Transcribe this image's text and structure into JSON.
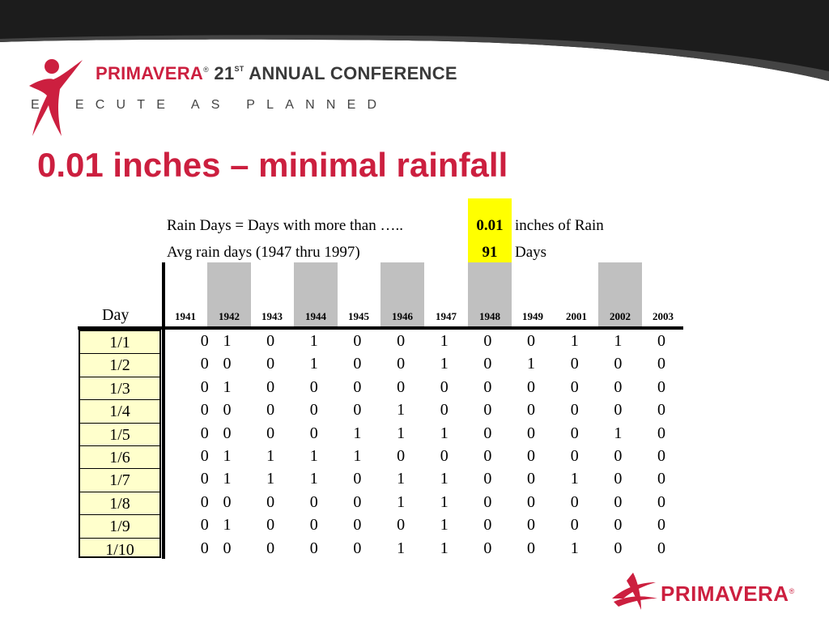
{
  "header": {
    "brand": "PRIMAVERA",
    "conference_prefix": " 21",
    "conference_sup": "ST",
    "conference_suffix": " ANNUAL CONFERENCE",
    "tagline": "ECUTE AS PLANNED",
    "tagline_initial": "E"
  },
  "title": "0.01 inches – minimal rainfall",
  "info": {
    "line1_left": "Rain Days  =  Days with more than …..",
    "line1_value": "0.01",
    "line1_right": "inches of Rain",
    "line2_left": "Avg rain days (1947 thru 1997)",
    "line2_value": "91",
    "line2_right": "Days"
  },
  "table": {
    "day_header": "Day",
    "years": [
      "1941",
      "1942",
      "1943",
      "1944",
      "1945",
      "1946",
      "1947",
      "1948",
      "1949",
      "2001",
      "2002",
      "2003"
    ],
    "rows": [
      {
        "day": "1/1",
        "values": [
          "0",
          "1",
          "0",
          "1",
          "0",
          "0",
          "1",
          "0",
          "0",
          "1",
          "1",
          "0"
        ]
      },
      {
        "day": "1/2",
        "values": [
          "0",
          "0",
          "0",
          "1",
          "0",
          "0",
          "1",
          "0",
          "1",
          "0",
          "0",
          "0"
        ]
      },
      {
        "day": "1/3",
        "values": [
          "0",
          "1",
          "0",
          "0",
          "0",
          "0",
          "0",
          "0",
          "0",
          "0",
          "0",
          "0"
        ]
      },
      {
        "day": "1/4",
        "values": [
          "0",
          "0",
          "0",
          "0",
          "0",
          "1",
          "0",
          "0",
          "0",
          "0",
          "0",
          "0"
        ]
      },
      {
        "day": "1/5",
        "values": [
          "0",
          "0",
          "0",
          "0",
          "1",
          "1",
          "1",
          "0",
          "0",
          "0",
          "1",
          "0"
        ]
      },
      {
        "day": "1/6",
        "values": [
          "0",
          "1",
          "1",
          "1",
          "1",
          "0",
          "0",
          "0",
          "0",
          "0",
          "0",
          "0"
        ]
      },
      {
        "day": "1/7",
        "values": [
          "0",
          "1",
          "1",
          "1",
          "0",
          "1",
          "1",
          "0",
          "0",
          "1",
          "0",
          "0"
        ]
      },
      {
        "day": "1/8",
        "values": [
          "0",
          "0",
          "0",
          "0",
          "0",
          "1",
          "1",
          "0",
          "0",
          "0",
          "0",
          "0"
        ]
      },
      {
        "day": "1/9",
        "values": [
          "0",
          "1",
          "0",
          "0",
          "0",
          "0",
          "1",
          "0",
          "0",
          "0",
          "0",
          "0"
        ]
      },
      {
        "day": "1/10",
        "values": [
          "0",
          "0",
          "0",
          "0",
          "0",
          "1",
          "1",
          "0",
          "0",
          "1",
          "0",
          "0"
        ]
      }
    ]
  },
  "footer": {
    "brand": "PRIMAVERA"
  },
  "colors": {
    "brand_red": "#cc1f3f",
    "highlight_yellow": "#ffff00",
    "day_column_fill": "#ffffcc",
    "grey_column": "#c0c0c0"
  }
}
